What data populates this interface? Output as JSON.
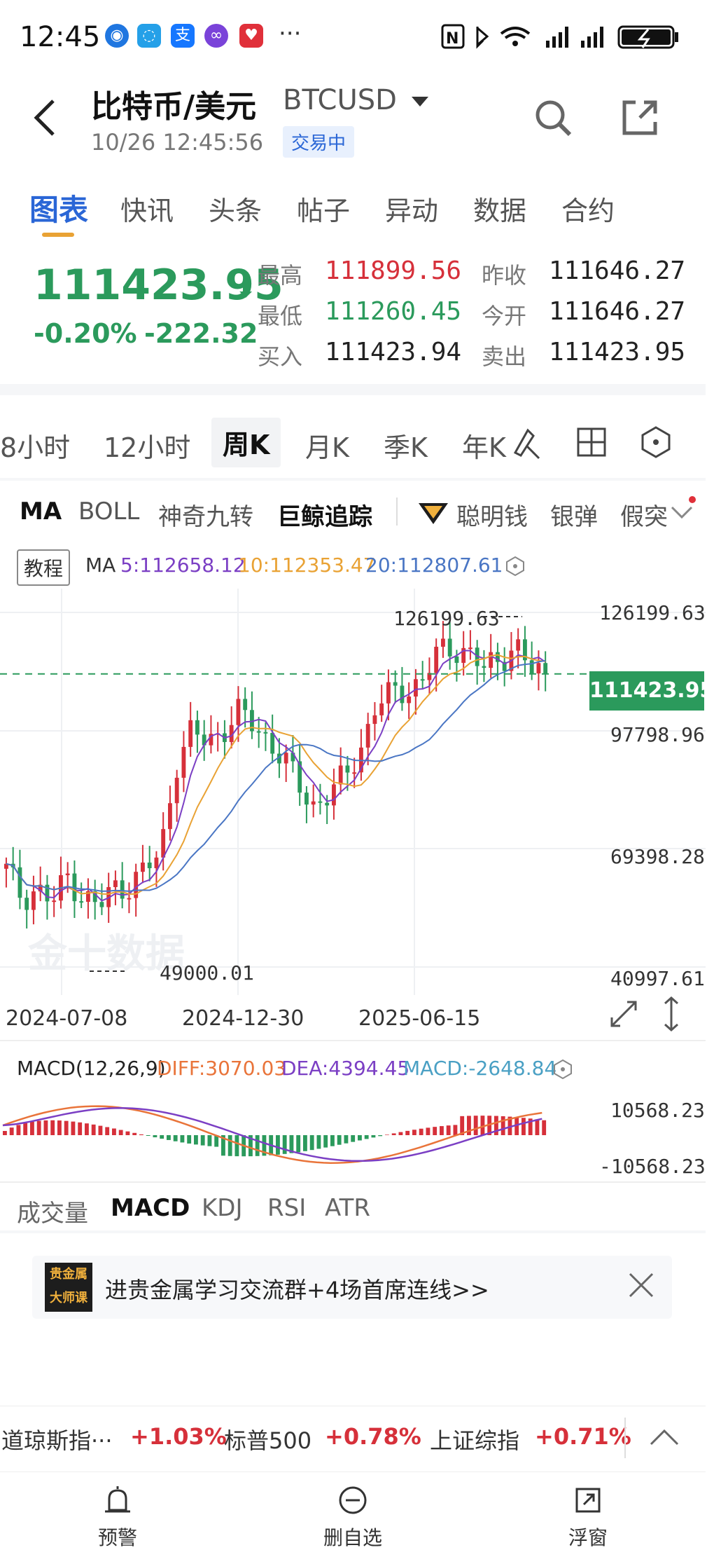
{
  "status_bar": {
    "time": "12:45",
    "more": "···",
    "right_icons": [
      "nfc-icon",
      "bluetooth-icon",
      "wifi-icon",
      "signal-icon",
      "battery-icon"
    ]
  },
  "header": {
    "title": "比特币/美元",
    "symbol": "BTCUSD",
    "datetime": "10/26 12:45:56",
    "status_badge": "交易中"
  },
  "tabs": [
    "图表",
    "快讯",
    "头条",
    "帖子",
    "异动",
    "数据",
    "合约"
  ],
  "quote": {
    "price": "111423.95",
    "change_pct": "-0.20%",
    "change": "-222.32",
    "high_label": "最高",
    "high": "111899.56",
    "low_label": "最低",
    "low": "111260.45",
    "bid_label": "买入",
    "bid": "111423.94",
    "prev_close_label": "昨收",
    "prev_close": "111646.27",
    "open_label": "今开",
    "open": "111646.27",
    "ask_label": "卖出",
    "ask": "111423.95"
  },
  "periods": [
    "8小时",
    "12小时",
    "周K",
    "月K",
    "季K",
    "年K"
  ],
  "indicators": [
    "MA",
    "BOLL",
    "神奇九转",
    "巨鲸追踪",
    "聪明钱",
    "银弹",
    "假突"
  ],
  "chart": {
    "tutorial": "教程",
    "ma_label": "MA",
    "ma5": "5:112658.12",
    "ma10": "10:112353.47",
    "ma20": "20:112807.61",
    "y_labels": [
      "126199.63",
      "97798.96",
      "69398.28",
      "40997.61"
    ],
    "high_marker": "126199.63",
    "low_marker": "49000.01",
    "current_price_tag": "111423.95",
    "dates": [
      "2024-07-08",
      "2024-12-30",
      "2025-06-15"
    ],
    "watermark": "金十数据",
    "macd_label": "MACD(12,26,9)",
    "diff": "DIFF:3070.03",
    "dea": "DEA:4394.45",
    "macd": "MACD:-2648.84",
    "macd_top": "10568.23",
    "macd_bottom": "-10568.23",
    "colors": {
      "up": "#d6303a",
      "down": "#2b9a5c",
      "ma5": "#7b3fc4",
      "ma10": "#e9a234",
      "ma20": "#4a76c4"
    }
  },
  "chart_data": {
    "type": "candlestick",
    "x_dates_visible": [
      "2024-07-08",
      "2024-12-30",
      "2025-06-15"
    ],
    "ylim": [
      40997.61,
      126199.63
    ],
    "y_ticks": [
      126199.63,
      97798.96,
      69398.28,
      40997.61
    ],
    "approx_close_path": [
      64000,
      58000,
      60000,
      56000,
      63000,
      58000,
      55000,
      60000,
      61000,
      64000,
      68000,
      90000,
      97000,
      95000,
      98000,
      102000,
      99000,
      96000,
      91000,
      84000,
      80000,
      83000,
      86000,
      94000,
      104000,
      106000,
      108000,
      110000,
      116000,
      118000,
      117000,
      112000,
      115000,
      119000,
      112000,
      111423.95
    ],
    "max": 126199.63,
    "min": 49000.01,
    "last": 111423.95
  },
  "subtabs": [
    "成交量",
    "MACD",
    "KDJ",
    "RSI",
    "ATR"
  ],
  "banner": {
    "logo": "贵金属大师课",
    "text": "进贵金属学习交流群+4场首席连线>>"
  },
  "ticker": [
    {
      "name": "道琼斯指···",
      "chg": "+1.03%"
    },
    {
      "name": "标普500",
      "chg": "+0.78%"
    },
    {
      "name": "上证综指",
      "chg": "+0.71%"
    }
  ],
  "bottom_nav": [
    {
      "icon": "alarm-icon",
      "label": "预警"
    },
    {
      "icon": "remove-circle-icon",
      "label": "删自选"
    },
    {
      "icon": "share-icon",
      "label": "浮窗"
    }
  ]
}
